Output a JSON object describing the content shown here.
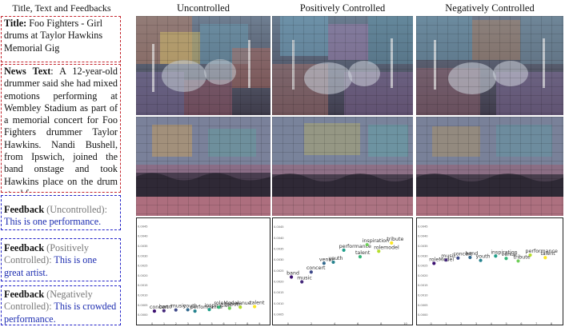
{
  "headers": {
    "left": "Title, Text and Feedbacks",
    "col1": "Uncontrolled",
    "col2": "Positively Controlled",
    "col3": "Negatively Controlled"
  },
  "title_box": {
    "label": "Title:",
    "text": " Foo Fighters - Girl drums at Taylor Hawkins Memorial Gig"
  },
  "news_box": {
    "label": "News Text",
    "text": ": A 12-year-old drummer said she had mixed emotions performing at Wembley Stadium as part of a memorial concert for Foo Fighters drummer Taylor Hawkins. Nandi Bushell, from Ipswich, joined the band onstage and took Hawkins place on the drum stool for..."
  },
  "feedbacks": [
    {
      "label": "Feedback",
      "mode": " (Uncontrolled):",
      "text": "This is one performance."
    },
    {
      "label": "Feedback",
      "mode": " (Positively Controlled):",
      "text": " This is one great artist."
    },
    {
      "label": "Feedback",
      "mode": " (Negatively Controlled):",
      "text": " This is crowded performance."
    }
  ],
  "colors": {
    "red_dash": "#c4262e",
    "blue_dash": "#2323c8",
    "feedback_text": "#1c2cb0"
  },
  "chart_data": [
    {
      "type": "scatter",
      "panel": "Uncontrolled",
      "points": [
        {
          "label": "concert",
          "x": 0.2,
          "y": 0.0002
        },
        {
          "label": "band",
          "x": 1.0,
          "y": 0.00022
        },
        {
          "label": "music",
          "x": 2.0,
          "y": 0.00026
        },
        {
          "label": "youth",
          "x": 3.0,
          "y": 0.00027
        },
        {
          "label": "performance",
          "x": 3.6,
          "y": 0.0002
        },
        {
          "label": "inspiration",
          "x": 4.8,
          "y": 0.00028
        },
        {
          "label": "roleModel",
          "x": 5.6,
          "y": 0.0004
        },
        {
          "label": "tribute",
          "x": 6.5,
          "y": 0.00035
        },
        {
          "label": "venue",
          "x": 7.4,
          "y": 0.0004
        },
        {
          "label": "talent",
          "x": 8.6,
          "y": 0.00043
        }
      ],
      "xticks": [
        "0",
        "1",
        "2",
        "3",
        "4",
        "5",
        "6",
        "7",
        "8",
        "9"
      ],
      "yticks": [
        "0.0000",
        "0.0005",
        "0.0010",
        "0.0015",
        "0.0020",
        "0.0025",
        "0.0030",
        "0.0035",
        "0.0040",
        "0.0045"
      ]
    },
    {
      "type": "scatter",
      "panel": "Positively Controlled",
      "points": [
        {
          "label": "band",
          "x": 0.3,
          "y": 0.00222
        },
        {
          "label": "music",
          "x": 1.2,
          "y": 0.002
        },
        {
          "label": "concert",
          "x": 2.0,
          "y": 0.00245
        },
        {
          "label": "venue",
          "x": 3.1,
          "y": 0.00285
        },
        {
          "label": "youth",
          "x": 3.9,
          "y": 0.0029
        },
        {
          "label": "performance",
          "x": 4.8,
          "y": 0.00345
        },
        {
          "label": "talent",
          "x": 6.2,
          "y": 0.00315
        },
        {
          "label": "inspiration",
          "x": 6.8,
          "y": 0.0037
        },
        {
          "label": "rolemodel",
          "x": 7.8,
          "y": 0.0034
        },
        {
          "label": "tribute",
          "x": 8.9,
          "y": 0.00378
        }
      ],
      "xticks": [
        "0",
        "2",
        "4",
        "6",
        "8",
        "10"
      ],
      "yticks": [
        "0.0005",
        "0.0010",
        "0.0015",
        "0.0020",
        "0.0025",
        "0.0030",
        "0.0035",
        "0.0040",
        "0.0045"
      ]
    },
    {
      "type": "scatter",
      "panel": "Negatively Controlled",
      "points": [
        {
          "label": "roleModel",
          "x": 0.2,
          "y": 0.00263
        },
        {
          "label": "music",
          "x": 1.0,
          "y": 0.0028
        },
        {
          "label": "concert",
          "x": 1.8,
          "y": 0.0029
        },
        {
          "label": "band",
          "x": 2.6,
          "y": 0.00293
        },
        {
          "label": "youth",
          "x": 3.3,
          "y": 0.00278
        },
        {
          "label": "inspiration",
          "x": 4.3,
          "y": 0.003
        },
        {
          "label": "venue",
          "x": 5.0,
          "y": 0.00288
        },
        {
          "label": "tribute",
          "x": 5.8,
          "y": 0.00275
        },
        {
          "label": "performance",
          "x": 6.6,
          "y": 0.00305
        },
        {
          "label": "talent",
          "x": 7.6,
          "y": 0.00292
        }
      ],
      "xticks": [
        "0",
        "1",
        "2",
        "3",
        "4",
        "5",
        "6",
        "7",
        "8"
      ],
      "yticks": [
        "0.0000",
        "0.0005",
        "0.0010",
        "0.0015",
        "0.0020",
        "0.0025",
        "0.0030",
        "0.0035",
        "0.0040",
        "0.0045"
      ]
    }
  ]
}
